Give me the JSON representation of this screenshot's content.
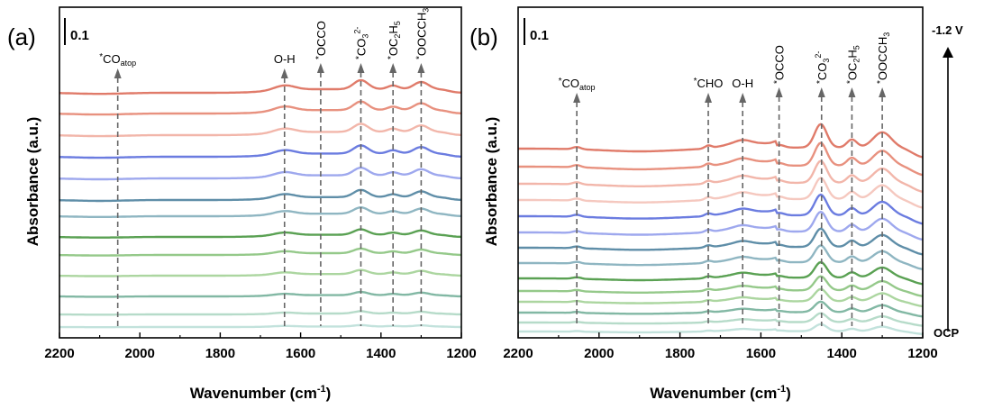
{
  "chart_data": [
    {
      "type": "line",
      "panel_label": "(a)",
      "scale_bar_label": "0.1",
      "xlabel": "Wavenumber (cm",
      "xlabel_sup": "-1",
      "xlabel_end": ")",
      "ylabel": "Absorbance (a.u.)",
      "xlim": [
        2200,
        1200
      ],
      "x_ticks": [
        "2200",
        "2000",
        "1800",
        "1600",
        "1400",
        "1200"
      ],
      "peaks": [
        {
          "x": 2055,
          "pre": "*",
          "text": "CO",
          "sub": "atop",
          "rotated": false
        },
        {
          "x": 1640,
          "pre": "",
          "text": "O-H",
          "rotated": false
        },
        {
          "x": 1550,
          "pre": "*",
          "text": "OCCO",
          "rotated": true
        },
        {
          "x": 1450,
          "pre": "*",
          "text": "CO",
          "sub": "3",
          "sup": "2-",
          "rotated": true
        },
        {
          "x": 1370,
          "pre": "*",
          "text": "OC",
          "sub": "2",
          "text2": "H",
          "sub2": "5",
          "rotated": true
        },
        {
          "x": 1300,
          "pre": "*",
          "text": "OOCCH",
          "sub": "3",
          "rotated": true
        }
      ],
      "series": [
        {
          "name": "s1",
          "color": "#e07b6a",
          "baseline": 103,
          "amp": 1.0
        },
        {
          "name": "s2",
          "color": "#e8917f",
          "baseline": 126,
          "amp": 0.95
        },
        {
          "name": "s3",
          "color": "#f2b6aa",
          "baseline": 150,
          "amp": 0.9
        },
        {
          "name": "s4",
          "color": "#6b7ce0",
          "baseline": 174,
          "amp": 0.9
        },
        {
          "name": "s5",
          "color": "#9ea8ee",
          "baseline": 198,
          "amp": 0.85
        },
        {
          "name": "s6",
          "color": "#5f8ea8",
          "baseline": 222,
          "amp": 0.8
        },
        {
          "name": "s7",
          "color": "#8fb6c2",
          "baseline": 240,
          "amp": 0.7
        },
        {
          "name": "s8",
          "color": "#5aa153",
          "baseline": 263,
          "amp": 0.6
        },
        {
          "name": "s9",
          "color": "#95c98a",
          "baseline": 283,
          "amp": 0.5
        },
        {
          "name": "s10",
          "color": "#acd6a0",
          "baseline": 306,
          "amp": 0.45
        },
        {
          "name": "s11",
          "color": "#82b8a4",
          "baseline": 329,
          "amp": 0.35
        },
        {
          "name": "s12",
          "color": "#b6dbc9",
          "baseline": 349,
          "amp": 0.25
        },
        {
          "name": "s13",
          "color": "#c2e2dc",
          "baseline": 363,
          "amp": 0.15
        }
      ]
    },
    {
      "type": "line",
      "panel_label": "(b)",
      "scale_bar_label": "0.1",
      "xlabel": "Wavenumber (cm",
      "xlabel_sup": "-1",
      "xlabel_end": ")",
      "ylabel": "Absorbance (a.u.)",
      "xlim": [
        2200,
        1200
      ],
      "x_ticks": [
        "2200",
        "2000",
        "1800",
        "1600",
        "1400",
        "1200"
      ],
      "top_label": "-1.2 V",
      "bottom_label": "OCP",
      "peaks": [
        {
          "x": 2055,
          "pre": "*",
          "text": "CO",
          "sub": "atop",
          "rotated": false
        },
        {
          "x": 1730,
          "pre": "*",
          "text": "CHO",
          "rotated": false
        },
        {
          "x": 1645,
          "pre": "",
          "text": "O-H",
          "rotated": false
        },
        {
          "x": 1555,
          "pre": "*",
          "text": "OCCO",
          "rotated": true
        },
        {
          "x": 1450,
          "pre": "*",
          "text": "CO",
          "sub": "3",
          "sup": "2-",
          "rotated": true
        },
        {
          "x": 1375,
          "pre": "*",
          "text": "OC",
          "sub": "2",
          "text2": "H",
          "sub2": "5",
          "rotated": true
        },
        {
          "x": 1300,
          "pre": "*",
          "text": "OOCCH",
          "sub": "3",
          "rotated": true
        }
      ],
      "series": [
        {
          "name": "s1",
          "color": "#e07b6a",
          "baseline": 165,
          "amp": 1.0
        },
        {
          "name": "s2",
          "color": "#e8917f",
          "baseline": 185,
          "amp": 0.97
        },
        {
          "name": "s3",
          "color": "#f2b6aa",
          "baseline": 204,
          "amp": 0.93
        },
        {
          "name": "s4",
          "color": "#f5c8bf",
          "baseline": 222,
          "amp": 0.9
        },
        {
          "name": "s5",
          "color": "#6b7ce0",
          "baseline": 240,
          "amp": 0.88
        },
        {
          "name": "s6",
          "color": "#9ea8ee",
          "baseline": 258,
          "amp": 0.84
        },
        {
          "name": "s7",
          "color": "#5f8ea8",
          "baseline": 275,
          "amp": 0.78
        },
        {
          "name": "s8",
          "color": "#8fb6c2",
          "baseline": 292,
          "amp": 0.72
        },
        {
          "name": "s9",
          "color": "#5aa153",
          "baseline": 309,
          "amp": 0.66
        },
        {
          "name": "s10",
          "color": "#95c98a",
          "baseline": 323,
          "amp": 0.6
        },
        {
          "name": "s11",
          "color": "#acd6a0",
          "baseline": 335,
          "amp": 0.52
        },
        {
          "name": "s12",
          "color": "#82b8a4",
          "baseline": 347,
          "amp": 0.45
        },
        {
          "name": "s13",
          "color": "#b6dbc9",
          "baseline": 358,
          "amp": 0.38
        },
        {
          "name": "s14",
          "color": "#c2e2dc",
          "baseline": 368,
          "amp": 0.3
        }
      ]
    }
  ]
}
